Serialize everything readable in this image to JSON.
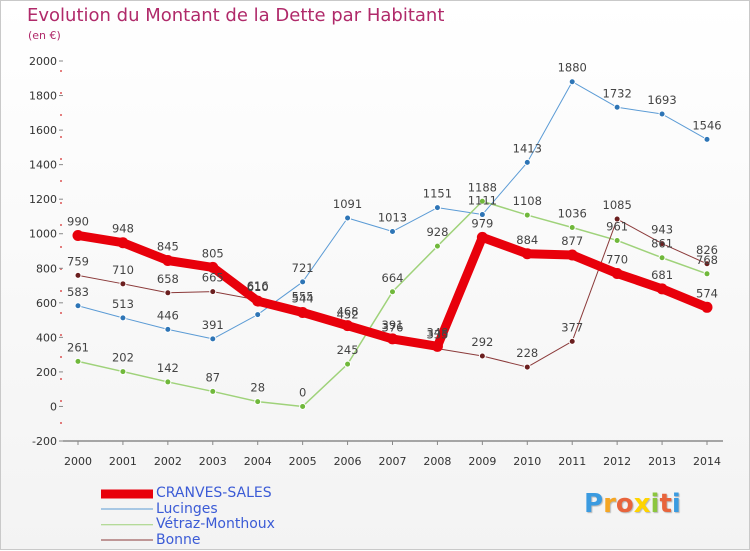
{
  "title": "Evolution du Montant de la Dette par Habitant",
  "subtitle": "(en €)",
  "logo": {
    "letters": [
      "P",
      "r",
      "o",
      "x",
      "i",
      "t",
      "i"
    ],
    "colors": [
      "#3b9be0",
      "#f5a623",
      "#e8643c",
      "#ffd400",
      "#8cc63f",
      "#e8643c",
      "#3b9be0"
    ]
  },
  "chart_data": {
    "type": "line",
    "x": [
      "2000",
      "2001",
      "2002",
      "2003",
      "2004",
      "2005",
      "2006",
      "2007",
      "2008",
      "2009",
      "2010",
      "2011",
      "2012",
      "2013",
      "2014"
    ],
    "ylim": [
      -200,
      2000
    ],
    "yticks": [
      "-200",
      "0",
      "200",
      "400",
      "600",
      "800",
      "1000",
      "1200",
      "1400",
      "1600",
      "1800",
      "2000"
    ],
    "grid": false,
    "legend_position": "bottom-left",
    "series": [
      {
        "name": "CRANVES-SALES",
        "color": "#e8000b",
        "pointColor": "#e8000b",
        "width": 9,
        "radius": 5.5,
        "values": [
          990,
          948,
          845,
          805,
          610,
          544,
          468,
          391,
          348,
          979,
          884,
          877,
          770,
          681,
          574
        ]
      },
      {
        "name": "Lucinges",
        "color": "#5b9bd5",
        "pointColor": "#2e75b6",
        "width": 1,
        "radius": 3,
        "values": [
          583,
          513,
          446,
          391,
          532,
          721,
          1091,
          1013,
          1151,
          1111,
          1413,
          1880,
          1732,
          1693,
          1546
        ]
      },
      {
        "name": "Vétraz-Monthoux",
        "color": "#9fd27a",
        "pointColor": "#70b83b",
        "width": 1.5,
        "radius": 3,
        "values": [
          261,
          202,
          142,
          87,
          28,
          0,
          245,
          664,
          928,
          1188,
          1108,
          1036,
          961,
          861,
          768
        ]
      },
      {
        "name": "Bonne",
        "color": "#8b3a3a",
        "pointColor": "#6b1f1f",
        "width": 1,
        "radius": 3,
        "values": [
          759,
          710,
          658,
          665,
          616,
          555,
          452,
          376,
          335,
          292,
          228,
          377,
          1085,
          943,
          826
        ]
      }
    ],
    "labels": [
      [
        "990",
        "948",
        "845",
        "805",
        "610",
        "544",
        "468",
        "391",
        "348",
        "979",
        "884",
        "877",
        "770",
        "681",
        "574"
      ],
      [
        "583",
        "513",
        "446",
        "391",
        "",
        "721",
        "1091",
        "1013",
        "1151",
        "1111",
        "1413",
        "1880",
        "1732",
        "1693",
        "1546"
      ],
      [
        "261",
        "202",
        "142",
        "87",
        "28",
        "0",
        "245",
        "664",
        "928",
        "1188",
        "1108",
        "1036",
        "961",
        "861",
        "768"
      ],
      [
        "759",
        "710",
        "658",
        "665",
        "616",
        "555",
        "452",
        "376",
        "335",
        "292",
        "228",
        "377",
        "1085",
        "943",
        "826"
      ]
    ]
  }
}
